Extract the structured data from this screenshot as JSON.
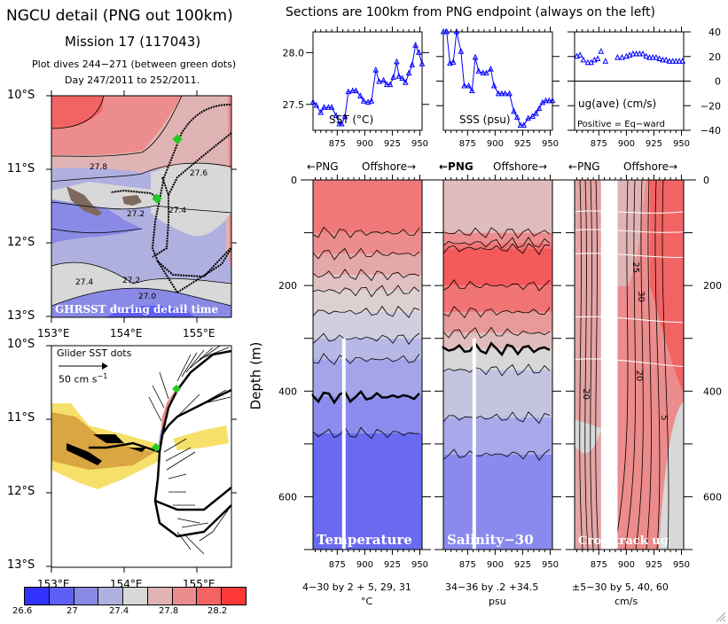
{
  "titles": {
    "main": "NGCU detail (PNG out 100km)",
    "mission": "Mission 17 (117043)",
    "dives": "Plot dives 244−271 (between green dots)",
    "days": "Day 247/2011 to 252/2011.",
    "sections": "Sections are 100km from PNG endpoint (always on the left)"
  },
  "map_top": {
    "caption": "GHRSST during detail time",
    "lat_labels": [
      "10°S",
      "11°S",
      "12°S",
      "13°S"
    ],
    "lon_labels": [
      "153°E",
      "154°E",
      "155°E"
    ],
    "contour_labels": [
      "27.8",
      "27.6",
      "27.2",
      "27.4",
      "27.4",
      "27.2",
      "27.0"
    ]
  },
  "map_bottom": {
    "caption": "Glider SST dots",
    "scale_label": "50 cm s",
    "scale_exp": "−1",
    "lat_labels": [
      "10°S",
      "11°S",
      "12°S",
      "13°S"
    ],
    "lon_labels": [
      "153°E",
      "154°E",
      "155°E"
    ]
  },
  "colorbar": {
    "colors": [
      "#3333ff",
      "#5e5ef2",
      "#8a8ae6",
      "#b0b0e0",
      "#d8d8d8",
      "#e0b4b4",
      "#ec8c8c",
      "#f26464",
      "#ff3838"
    ],
    "labels": [
      "26.6",
      "27",
      "27.4",
      "27.8",
      "28.2"
    ]
  },
  "sections": {
    "png_label": "←PNG",
    "offshore_label": "Offshore→",
    "depth_label": "Depth (m)"
  },
  "chart_data": [
    {
      "type": "line",
      "title": "SST (°C)",
      "xlabel": "",
      "ylabel": "",
      "x_ticks": [
        "875",
        "900",
        "925",
        "950"
      ],
      "y_ticks": [
        "27.5",
        "28.0"
      ],
      "xlim": [
        853,
        952
      ],
      "ylim": [
        27.25,
        28.2
      ],
      "x": [
        853,
        856,
        860,
        863,
        867,
        870,
        874,
        877,
        879,
        882,
        885,
        889,
        892,
        896,
        899,
        903,
        906,
        910,
        913,
        917,
        920,
        923,
        926,
        929,
        931,
        934,
        937,
        940,
        943,
        946,
        949,
        952
      ],
      "values": [
        27.52,
        27.49,
        27.42,
        27.47,
        27.47,
        27.47,
        27.39,
        27.31,
        27.31,
        27.38,
        27.62,
        27.63,
        27.63,
        27.58,
        27.53,
        27.52,
        27.53,
        27.83,
        27.72,
        27.73,
        27.69,
        27.69,
        27.76,
        27.91,
        27.77,
        27.75,
        27.71,
        27.8,
        27.88,
        28.07,
        28.0,
        27.89
      ],
      "color": "#0000ff"
    },
    {
      "type": "line",
      "title": "SSS (psu)",
      "xlabel": "",
      "ylabel": "",
      "x_ticks": [
        "875",
        "900",
        "925",
        "950"
      ],
      "y_ticks": [],
      "xlim": [
        853,
        952
      ],
      "ylim": [
        0,
        100
      ],
      "x": [
        853,
        856,
        859,
        862,
        865,
        869,
        872,
        876,
        879,
        882,
        885,
        889,
        892,
        896,
        899,
        903,
        906,
        909,
        913,
        917,
        920,
        923,
        926,
        930,
        934,
        937,
        940,
        943,
        946,
        949,
        952
      ],
      "values": [
        100,
        100,
        68,
        69,
        100,
        80,
        45,
        45,
        40,
        74,
        60,
        58,
        58,
        62,
        45,
        37,
        37,
        37,
        37,
        19,
        13,
        5,
        5,
        12,
        14,
        17,
        22,
        28,
        30,
        30,
        30
      ],
      "color": "#0000ff"
    },
    {
      "type": "scatter",
      "title": "ug(ave) (cm/s)",
      "subtitle": "Positive = Eq−ward",
      "xlabel": "",
      "ylabel": "",
      "x_ticks": [
        "875",
        "900",
        "925",
        "950"
      ],
      "y_ticks": [
        "40",
        "20",
        "0",
        "−20",
        "−40"
      ],
      "xlim": [
        853,
        952
      ],
      "ylim": [
        -40,
        40
      ],
      "x": [
        855,
        858,
        861,
        865,
        868,
        871,
        874,
        877,
        881,
        892,
        896,
        900,
        903,
        906,
        909,
        912,
        915,
        918,
        921,
        924,
        927,
        930,
        933,
        936,
        939,
        942,
        945,
        948,
        951
      ],
      "values": [
        20,
        21,
        17,
        15,
        15,
        17,
        18,
        24,
        16,
        19,
        19,
        20,
        21,
        22,
        22,
        22,
        22,
        20,
        19,
        19,
        19,
        18,
        17,
        17,
        16,
        16,
        16,
        16,
        16
      ],
      "color": "#0000ff"
    },
    {
      "type": "heatmap",
      "title": "Temperature",
      "x_ticks": [
        "875",
        "900",
        "925",
        "950"
      ],
      "y_ticks": [
        "0",
        "200",
        "400",
        "600"
      ],
      "xlim": [
        853,
        952
      ],
      "ylim": [
        700,
        0
      ],
      "footer": "4−30 by 2 + 5, 29, 31",
      "unit": "°C",
      "bands": [
        {
          "depth": 0,
          "color": "#f07878"
        },
        {
          "depth": 100,
          "color": "#ec8c8c"
        },
        {
          "depth": 140,
          "color": "#e4a8a8"
        },
        {
          "depth": 180,
          "color": "#e0c0c0"
        },
        {
          "depth": 210,
          "color": "#dcd0d0"
        },
        {
          "depth": 250,
          "color": "#cfcfe0"
        },
        {
          "depth": 300,
          "color": "#b8b8e6"
        },
        {
          "depth": 340,
          "color": "#a4a4ea"
        },
        {
          "depth": 410,
          "color": "#8c8cee"
        },
        {
          "depth": 480,
          "color": "#6a6af0"
        }
      ],
      "thick_contours": [
        205,
        410
      ],
      "gap_x": 881
    },
    {
      "type": "heatmap",
      "title": "Salinity−30",
      "x_ticks": [
        "875",
        "900",
        "925",
        "950"
      ],
      "y_ticks": [],
      "xlim": [
        853,
        952
      ],
      "ylim": [
        700,
        0
      ],
      "footer": "34−36 by .2 +34.5",
      "unit": "psu",
      "bands": [
        {
          "depth": 0,
          "color": "#e0bcbc"
        },
        {
          "depth": 100,
          "color": "#ec8c8c"
        },
        {
          "depth": 120,
          "color": "#f07474"
        },
        {
          "depth": 130,
          "color": "#f45a5a"
        },
        {
          "depth": 200,
          "color": "#f07474"
        },
        {
          "depth": 250,
          "color": "#e89a9a"
        },
        {
          "depth": 290,
          "color": "#e0bcbc"
        },
        {
          "depth": 320,
          "color": "#d8d8d8"
        },
        {
          "depth": 360,
          "color": "#c4c4e0"
        },
        {
          "depth": 450,
          "color": "#a8a8ea"
        },
        {
          "depth": 520,
          "color": "#8a8aee"
        }
      ],
      "thick_contours": [
        320
      ],
      "gap_x": 881
    },
    {
      "type": "heatmap",
      "title": "Crosstrack ug",
      "x_ticks": [
        "875",
        "900",
        "925",
        "950"
      ],
      "y_ticks": [
        "0",
        "200",
        "400",
        "600"
      ],
      "xlim": [
        853,
        952
      ],
      "ylim": [
        700,
        0
      ],
      "footer": "±5−30 by 5, 40, 60",
      "unit": "cm/s",
      "contour_labels": [
        "25",
        "30",
        "20",
        "20",
        "5"
      ],
      "gap_x": [
        877,
        892
      ]
    }
  ]
}
